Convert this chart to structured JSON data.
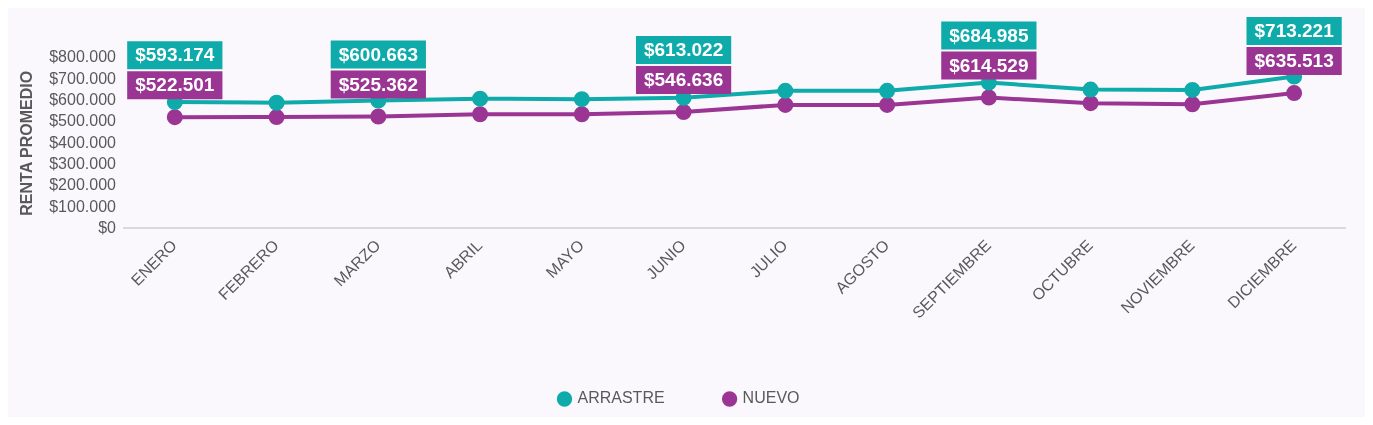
{
  "chart_data": {
    "type": "line",
    "ylabel": "RENTA PROMEDIO",
    "categories": [
      "ENERO",
      "FEBRERO",
      "MARZO",
      "ABRIL",
      "MAYO",
      "JUNIO",
      "JULIO",
      "AGOSTO",
      "SEPTIEMBRE",
      "OCTUBRE",
      "NOVIEMBRE",
      "DICIEMBRE"
    ],
    "series": [
      {
        "name": "ARRASTRE",
        "color": "#0fabab",
        "values": [
          593174,
          590000,
          600663,
          609000,
          607000,
          613022,
          646000,
          646000,
          684985,
          652000,
          650000,
          713221
        ],
        "value_labels": [
          "$593.174",
          null,
          "$600.663",
          null,
          null,
          "$613.022",
          null,
          null,
          "$684.985",
          null,
          null,
          "$713.221"
        ]
      },
      {
        "name": "NUEVO",
        "color": "#9b3594",
        "values": [
          522501,
          523000,
          525362,
          536000,
          536000,
          546636,
          580000,
          580000,
          614529,
          588000,
          583000,
          635513
        ],
        "value_labels": [
          "$522.501",
          null,
          "$525.362",
          null,
          null,
          "$546.636",
          null,
          null,
          "$614.529",
          null,
          null,
          "$635.513"
        ]
      }
    ],
    "ylim": [
      0,
      800000
    ],
    "yticks": [
      {
        "value": 0,
        "label": "$0"
      },
      {
        "value": 100000,
        "label": "$100.000"
      },
      {
        "value": 200000,
        "label": "$200.000"
      },
      {
        "value": 300000,
        "label": "$300.000"
      },
      {
        "value": 400000,
        "label": "$400.000"
      },
      {
        "value": 500000,
        "label": "$500.000"
      },
      {
        "value": 600000,
        "label": "$600.000"
      },
      {
        "value": 700000,
        "label": "$700.000"
      },
      {
        "value": 800000,
        "label": "$800.000"
      }
    ],
    "grid": false,
    "legend": "bottom",
    "marker": "circle",
    "line_style": "solid"
  }
}
